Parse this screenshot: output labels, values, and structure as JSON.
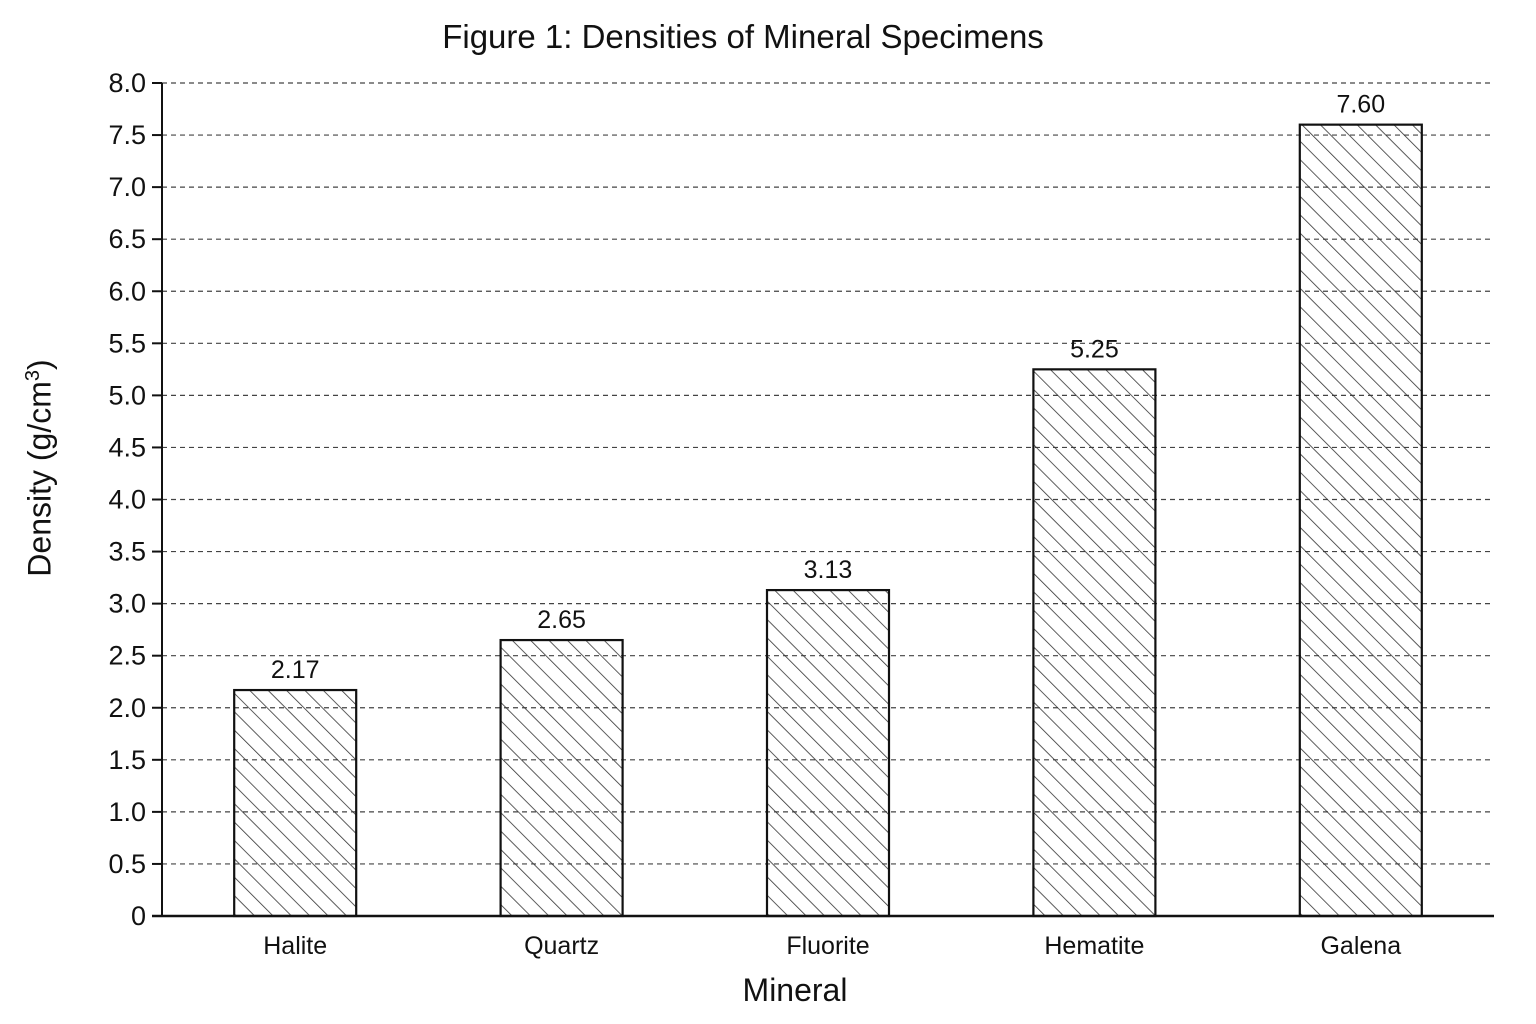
{
  "chart_data": {
    "type": "bar",
    "title": "Figure 1:  Densities of Mineral Specimens",
    "xlabel": "Mineral",
    "ylabel_main": "Density (g/cm",
    "ylabel_sup": "3",
    "ylabel_close": ")",
    "categories": [
      "Halite",
      "Quartz",
      "Fluorite",
      "Hematite",
      "Galena"
    ],
    "values": [
      2.17,
      2.65,
      3.13,
      5.25,
      7.6
    ],
    "value_labels": [
      "2.17",
      "2.65",
      "3.13",
      "5.25",
      "7.60"
    ],
    "ylim": [
      0,
      8.0
    ],
    "yticks": [
      "0",
      "0.5",
      "1.0",
      "1.5",
      "2.0",
      "2.5",
      "3.0",
      "3.5",
      "4.0",
      "4.5",
      "5.0",
      "5.5",
      "6.0",
      "6.5",
      "7.0",
      "7.5",
      "8.0"
    ],
    "grid": "dashed horizontal",
    "bar_fill": "diagonal hatch",
    "colors": {
      "axis": "#111111",
      "grid": "#444444",
      "bar_edge": "#111111",
      "hatch": "#333333",
      "background": "#ffffff"
    }
  }
}
